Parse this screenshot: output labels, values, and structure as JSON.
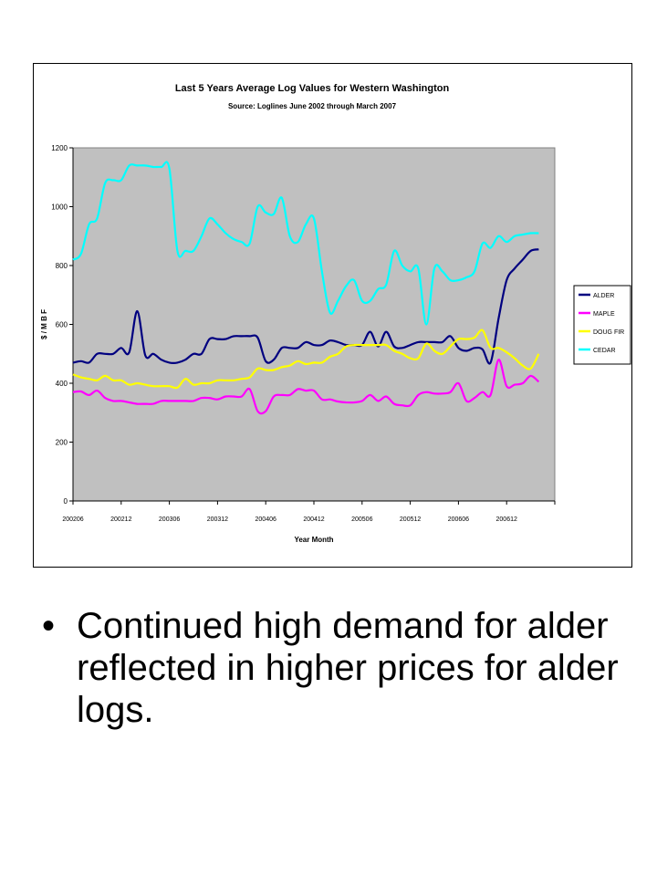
{
  "bullet": {
    "text": "Continued high demand for alder reflected in higher prices for alder logs."
  },
  "chart_data": {
    "type": "line",
    "title": "Last 5 Years Average Log Values for Western Washington",
    "subtitle": "Source: Loglines June 2002 through March 2007",
    "xlabel": "Year Month",
    "ylabel": "$ / M B F",
    "ylim": [
      0,
      1200
    ],
    "yticks": [
      0,
      200,
      400,
      600,
      800,
      1000,
      1200
    ],
    "xticks": [
      "200206",
      "200212",
      "200306",
      "200312",
      "200406",
      "200412",
      "200506",
      "200512",
      "200606",
      "200612"
    ],
    "x_index_range": [
      0,
      60
    ],
    "grid": false,
    "legend": "right",
    "plot_background": "#c0c0c0",
    "series": [
      {
        "name": "ALDER",
        "color": "#000080",
        "x": [
          0,
          1,
          2,
          3,
          4,
          5,
          6,
          7,
          8,
          9,
          10,
          11,
          12,
          13,
          14,
          15,
          16,
          17,
          18,
          19,
          20,
          21,
          22,
          23,
          24,
          25,
          26,
          27,
          28,
          29,
          30,
          31,
          32,
          33,
          34,
          35,
          36,
          37,
          38,
          39,
          40,
          41,
          42,
          43,
          44,
          45,
          46,
          47,
          48,
          49,
          50,
          51,
          52,
          53,
          54,
          55,
          56,
          57,
          58
        ],
        "values": [
          470,
          475,
          470,
          500,
          500,
          500,
          520,
          505,
          645,
          495,
          500,
          480,
          470,
          470,
          480,
          500,
          500,
          550,
          550,
          550,
          560,
          560,
          560,
          555,
          475,
          480,
          520,
          520,
          520,
          540,
          530,
          530,
          545,
          540,
          530,
          530,
          530,
          575,
          525,
          575,
          525,
          520,
          530,
          540,
          540,
          540,
          540,
          560,
          520,
          510,
          520,
          515,
          470,
          620,
          750,
          790,
          820,
          850,
          855
        ]
      },
      {
        "name": "MAPLE",
        "color": "#ff00ff",
        "x": [
          0,
          1,
          2,
          3,
          4,
          5,
          6,
          7,
          8,
          9,
          10,
          11,
          12,
          13,
          14,
          15,
          16,
          17,
          18,
          19,
          20,
          21,
          22,
          23,
          24,
          25,
          26,
          27,
          28,
          29,
          30,
          31,
          32,
          33,
          34,
          35,
          36,
          37,
          38,
          39,
          40,
          41,
          42,
          43,
          44,
          45,
          46,
          47,
          48,
          49,
          50,
          51,
          52,
          53,
          54,
          55,
          56,
          57,
          58
        ],
        "values": [
          370,
          372,
          360,
          375,
          350,
          340,
          340,
          335,
          330,
          330,
          330,
          340,
          340,
          340,
          340,
          340,
          350,
          350,
          345,
          355,
          355,
          355,
          380,
          305,
          305,
          355,
          360,
          360,
          380,
          375,
          375,
          345,
          345,
          338,
          335,
          335,
          340,
          360,
          340,
          355,
          330,
          325,
          325,
          360,
          370,
          365,
          365,
          370,
          400,
          340,
          350,
          370,
          360,
          480,
          390,
          395,
          400,
          425,
          405
        ]
      },
      {
        "name": "DOUG FIR",
        "color": "#ffff00",
        "x": [
          0,
          1,
          2,
          3,
          4,
          5,
          6,
          7,
          8,
          9,
          10,
          11,
          12,
          13,
          14,
          15,
          16,
          17,
          18,
          19,
          20,
          21,
          22,
          23,
          24,
          25,
          26,
          27,
          28,
          29,
          30,
          31,
          32,
          33,
          34,
          35,
          36,
          37,
          38,
          39,
          40,
          41,
          42,
          43,
          44,
          45,
          46,
          47,
          48,
          49,
          50,
          51,
          52,
          53,
          54,
          55,
          56,
          57,
          58
        ],
        "values": [
          430,
          420,
          415,
          410,
          425,
          410,
          410,
          395,
          400,
          395,
          390,
          390,
          390,
          385,
          415,
          395,
          400,
          400,
          410,
          410,
          410,
          415,
          420,
          450,
          445,
          445,
          455,
          460,
          475,
          465,
          470,
          470,
          490,
          500,
          525,
          530,
          530,
          530,
          530,
          530,
          510,
          500,
          485,
          485,
          535,
          510,
          500,
          525,
          550,
          550,
          555,
          580,
          520,
          520,
          505,
          485,
          460,
          450,
          500
        ]
      },
      {
        "name": "CEDAR",
        "color": "#00ffff",
        "x": [
          0,
          1,
          2,
          3,
          4,
          5,
          6,
          7,
          8,
          9,
          10,
          11,
          12,
          13,
          14,
          15,
          16,
          17,
          18,
          19,
          20,
          21,
          22,
          23,
          24,
          25,
          26,
          27,
          28,
          29,
          30,
          31,
          32,
          33,
          34,
          35,
          36,
          37,
          38,
          39,
          40,
          41,
          42,
          43,
          44,
          45,
          46,
          47,
          48,
          49,
          50,
          51,
          52,
          53,
          54,
          55,
          56,
          57,
          58
        ],
        "values": [
          820,
          840,
          940,
          960,
          1080,
          1090,
          1090,
          1140,
          1140,
          1140,
          1135,
          1135,
          1130,
          850,
          850,
          850,
          900,
          960,
          940,
          910,
          890,
          880,
          875,
          1000,
          980,
          975,
          1030,
          900,
          880,
          940,
          960,
          780,
          640,
          680,
          730,
          750,
          680,
          680,
          720,
          735,
          850,
          800,
          780,
          790,
          600,
          790,
          780,
          750,
          750,
          760,
          780,
          875,
          860,
          900,
          880,
          900,
          905,
          910,
          910
        ]
      }
    ]
  }
}
